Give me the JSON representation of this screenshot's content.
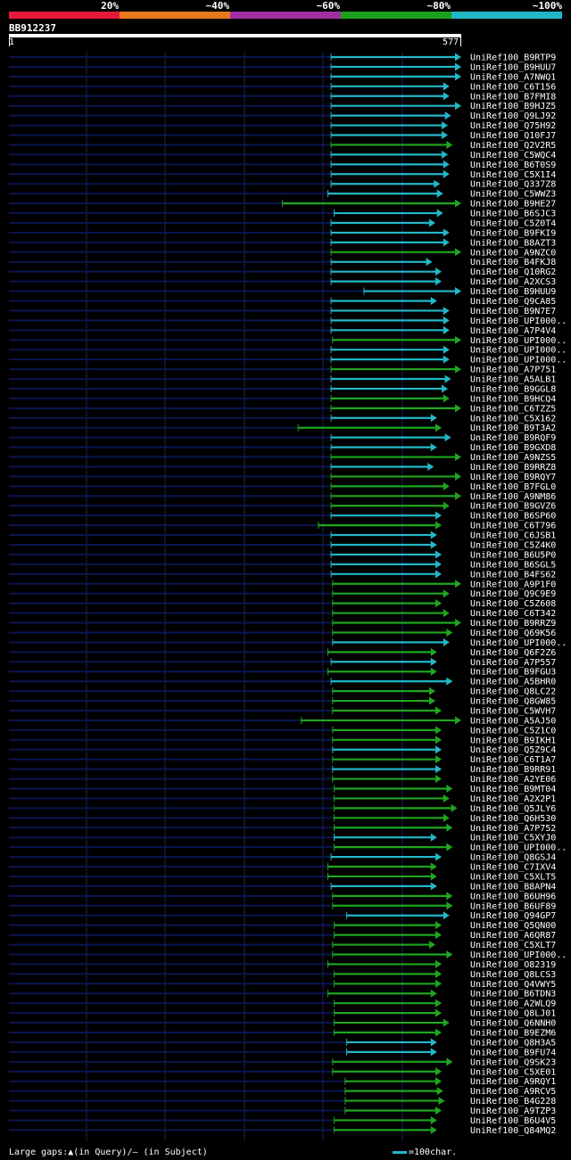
{
  "legend": {
    "labels": [
      "20%",
      "~40%",
      "~60%",
      "~80%",
      "~100%"
    ],
    "colors": [
      "#e8183c",
      "#e8781c",
      "#a030a0",
      "#1ca01c",
      "#20b8c4"
    ]
  },
  "query": {
    "name": "BB912237",
    "start": "1",
    "end": "577"
  },
  "colors": {
    "cyan": "#22b8c8",
    "green": "#1fa61f",
    "track": "#0a1650"
  },
  "hits": [
    {
      "label": "UniRef100_B9RTP9",
      "start": 412,
      "end": 577,
      "color": "cyan"
    },
    {
      "label": "UniRef100_B9HUU7",
      "start": 412,
      "end": 577,
      "color": "cyan"
    },
    {
      "label": "UniRef100_A7NWQ1",
      "start": 412,
      "end": 577,
      "color": "cyan"
    },
    {
      "label": "UniRef100_C6T156",
      "start": 412,
      "end": 562,
      "color": "cyan"
    },
    {
      "label": "UniRef100_B7FMI8",
      "start": 412,
      "end": 562,
      "color": "cyan"
    },
    {
      "label": "UniRef100_B9HJZ5",
      "start": 412,
      "end": 577,
      "color": "cyan"
    },
    {
      "label": "UniRef100_Q9LJ92",
      "start": 412,
      "end": 564,
      "color": "cyan"
    },
    {
      "label": "UniRef100_Q75H92",
      "start": 412,
      "end": 560,
      "color": "cyan"
    },
    {
      "label": "UniRef100_Q10FJ7",
      "start": 412,
      "end": 560,
      "color": "cyan"
    },
    {
      "label": "UniRef100_Q2V2R5",
      "start": 412,
      "end": 566,
      "color": "green"
    },
    {
      "label": "UniRef100_C5WQC4",
      "start": 412,
      "end": 560,
      "color": "cyan"
    },
    {
      "label": "UniRef100_B6T0S9",
      "start": 412,
      "end": 562,
      "color": "cyan"
    },
    {
      "label": "UniRef100_C5X1I4",
      "start": 412,
      "end": 562,
      "color": "cyan"
    },
    {
      "label": "UniRef100_Q337Z8",
      "start": 412,
      "end": 550,
      "color": "cyan"
    },
    {
      "label": "UniRef100_C5WWZ3",
      "start": 408,
      "end": 554,
      "color": "cyan"
    },
    {
      "label": "UniRef100_B9HE27",
      "start": 350,
      "end": 577,
      "color": "green"
    },
    {
      "label": "UniRef100_B6SJC3",
      "start": 416,
      "end": 554,
      "color": "cyan"
    },
    {
      "label": "UniRef100_C5Z0T4",
      "start": 412,
      "end": 544,
      "color": "cyan"
    },
    {
      "label": "UniRef100_B9FKI9",
      "start": 412,
      "end": 562,
      "color": "cyan"
    },
    {
      "label": "UniRef100_B8AZT3",
      "start": 412,
      "end": 562,
      "color": "cyan"
    },
    {
      "label": "UniRef100_A9NZC0",
      "start": 412,
      "end": 577,
      "color": "green"
    },
    {
      "label": "UniRef100_B4FKJ8",
      "start": 412,
      "end": 540,
      "color": "cyan"
    },
    {
      "label": "UniRef100_Q10RG2",
      "start": 412,
      "end": 552,
      "color": "cyan"
    },
    {
      "label": "UniRef100_A2XCS3",
      "start": 412,
      "end": 552,
      "color": "cyan"
    },
    {
      "label": "UniRef100_B9HUU9",
      "start": 454,
      "end": 577,
      "color": "cyan"
    },
    {
      "label": "UniRef100_Q9CA85",
      "start": 412,
      "end": 546,
      "color": "cyan"
    },
    {
      "label": "UniRef100_B9N7E7",
      "start": 412,
      "end": 562,
      "color": "cyan"
    },
    {
      "label": "UniRef100_UPI000..",
      "start": 412,
      "end": 562,
      "color": "cyan"
    },
    {
      "label": "UniRef100_A7P4V4",
      "start": 412,
      "end": 562,
      "color": "cyan"
    },
    {
      "label": "UniRef100_UPI000..",
      "start": 414,
      "end": 577,
      "color": "green"
    },
    {
      "label": "UniRef100_UPI000..",
      "start": 412,
      "end": 562,
      "color": "cyan"
    },
    {
      "label": "UniRef100_UPI000..",
      "start": 412,
      "end": 562,
      "color": "cyan"
    },
    {
      "label": "UniRef100_A7P751",
      "start": 412,
      "end": 577,
      "color": "green"
    },
    {
      "label": "UniRef100_A5ALB1",
      "start": 412,
      "end": 564,
      "color": "cyan"
    },
    {
      "label": "UniRef100_B9GGL8",
      "start": 412,
      "end": 560,
      "color": "cyan"
    },
    {
      "label": "UniRef100_B9HCQ4",
      "start": 412,
      "end": 562,
      "color": "green"
    },
    {
      "label": "UniRef100_C6TZZ5",
      "start": 412,
      "end": 577,
      "color": "green"
    },
    {
      "label": "UniRef100_C5X162",
      "start": 412,
      "end": 546,
      "color": "cyan"
    },
    {
      "label": "UniRef100_B9T3A2",
      "start": 370,
      "end": 552,
      "color": "green"
    },
    {
      "label": "UniRef100_B9RQF9",
      "start": 412,
      "end": 564,
      "color": "cyan"
    },
    {
      "label": "UniRef100_B9GXD8",
      "start": 412,
      "end": 546,
      "color": "cyan"
    },
    {
      "label": "UniRef100_A9NZS5",
      "start": 412,
      "end": 577,
      "color": "green"
    },
    {
      "label": "UniRef100_B9RRZ8",
      "start": 412,
      "end": 542,
      "color": "cyan"
    },
    {
      "label": "UniRef100_B9RQY7",
      "start": 412,
      "end": 577,
      "color": "green"
    },
    {
      "label": "UniRef100_B7FGL0",
      "start": 412,
      "end": 562,
      "color": "green"
    },
    {
      "label": "UniRef100_A9NM86",
      "start": 412,
      "end": 577,
      "color": "green"
    },
    {
      "label": "UniRef100_B9GVZ6",
      "start": 412,
      "end": 562,
      "color": "green"
    },
    {
      "label": "UniRef100_B6SP60",
      "start": 412,
      "end": 552,
      "color": "cyan"
    },
    {
      "label": "UniRef100_C6T796",
      "start": 396,
      "end": 552,
      "color": "green"
    },
    {
      "label": "UniRef100_C6JSB1",
      "start": 412,
      "end": 546,
      "color": "cyan"
    },
    {
      "label": "UniRef100_C5Z4K0",
      "start": 412,
      "end": 546,
      "color": "cyan"
    },
    {
      "label": "UniRef100_B6U5P0",
      "start": 412,
      "end": 552,
      "color": "cyan"
    },
    {
      "label": "UniRef100_B6SGL5",
      "start": 412,
      "end": 552,
      "color": "cyan"
    },
    {
      "label": "UniRef100_B4FS62",
      "start": 412,
      "end": 552,
      "color": "cyan"
    },
    {
      "label": "UniRef100_A9P1F0",
      "start": 414,
      "end": 577,
      "color": "green"
    },
    {
      "label": "UniRef100_Q9C9E9",
      "start": 414,
      "end": 562,
      "color": "green"
    },
    {
      "label": "UniRef100_C5Z608",
      "start": 414,
      "end": 552,
      "color": "green"
    },
    {
      "label": "UniRef100_C6T342",
      "start": 414,
      "end": 562,
      "color": "green"
    },
    {
      "label": "UniRef100_B9RRZ9",
      "start": 414,
      "end": 577,
      "color": "green"
    },
    {
      "label": "UniRef100_Q69K56",
      "start": 414,
      "end": 566,
      "color": "green"
    },
    {
      "label": "UniRef100_UPI000..",
      "start": 414,
      "end": 562,
      "color": "cyan"
    },
    {
      "label": "UniRef100_Q6F2Z6",
      "start": 408,
      "end": 546,
      "color": "green"
    },
    {
      "label": "UniRef100_A7P557",
      "start": 412,
      "end": 546,
      "color": "cyan"
    },
    {
      "label": "UniRef100_B9FGU3",
      "start": 408,
      "end": 546,
      "color": "green"
    },
    {
      "label": "UniRef100_A5BHR0",
      "start": 412,
      "end": 566,
      "color": "cyan"
    },
    {
      "label": "UniRef100_Q8LC22",
      "start": 414,
      "end": 544,
      "color": "green"
    },
    {
      "label": "UniRef100_Q8GW85",
      "start": 414,
      "end": 544,
      "color": "green"
    },
    {
      "label": "UniRef100_C5WVH7",
      "start": 414,
      "end": 552,
      "color": "green"
    },
    {
      "label": "UniRef100_A5AJ50",
      "start": 374,
      "end": 577,
      "color": "green"
    },
    {
      "label": "UniRef100_C5Z1C0",
      "start": 414,
      "end": 552,
      "color": "green"
    },
    {
      "label": "UniRef100_B9IKH1",
      "start": 414,
      "end": 552,
      "color": "green"
    },
    {
      "label": "UniRef100_Q5Z9C4",
      "start": 414,
      "end": 552,
      "color": "cyan"
    },
    {
      "label": "UniRef100_C6T1A7",
      "start": 414,
      "end": 552,
      "color": "green"
    },
    {
      "label": "UniRef100_B9RR91",
      "start": 414,
      "end": 552,
      "color": "cyan"
    },
    {
      "label": "UniRef100_A2YE06",
      "start": 414,
      "end": 552,
      "color": "green"
    },
    {
      "label": "UniRef100_B9MT04",
      "start": 416,
      "end": 566,
      "color": "green"
    },
    {
      "label": "UniRef100_A2X2P1",
      "start": 416,
      "end": 562,
      "color": "green"
    },
    {
      "label": "UniRef100_Q5JLY6",
      "start": 416,
      "end": 572,
      "color": "green"
    },
    {
      "label": "UniRef100_Q6H530",
      "start": 416,
      "end": 562,
      "color": "green"
    },
    {
      "label": "UniRef100_A7P752",
      "start": 416,
      "end": 566,
      "color": "green"
    },
    {
      "label": "UniRef100_C5XYJ0",
      "start": 416,
      "end": 546,
      "color": "cyan"
    },
    {
      "label": "UniRef100_UPI000..",
      "start": 416,
      "end": 566,
      "color": "green"
    },
    {
      "label": "UniRef100_Q8GSJ4",
      "start": 412,
      "end": 552,
      "color": "cyan"
    },
    {
      "label": "UniRef100_C7IXV4",
      "start": 408,
      "end": 546,
      "color": "green"
    },
    {
      "label": "UniRef100_C5XLT5",
      "start": 408,
      "end": 546,
      "color": "green"
    },
    {
      "label": "UniRef100_B8APN4",
      "start": 412,
      "end": 546,
      "color": "cyan"
    },
    {
      "label": "UniRef100_B6UH96",
      "start": 414,
      "end": 566,
      "color": "green"
    },
    {
      "label": "UniRef100_B6UF89",
      "start": 414,
      "end": 566,
      "color": "green"
    },
    {
      "label": "UniRef100_Q94GP7",
      "start": 432,
      "end": 562,
      "color": "cyan"
    },
    {
      "label": "UniRef100_Q5QN00",
      "start": 416,
      "end": 552,
      "color": "green"
    },
    {
      "label": "UniRef100_A6QR87",
      "start": 416,
      "end": 552,
      "color": "green"
    },
    {
      "label": "UniRef100_C5XLT7",
      "start": 414,
      "end": 544,
      "color": "green"
    },
    {
      "label": "UniRef100_UPI000..",
      "start": 414,
      "end": 566,
      "color": "green"
    },
    {
      "label": "UniRef100_O82319",
      "start": 408,
      "end": 552,
      "color": "green"
    },
    {
      "label": "UniRef100_Q8LCS3",
      "start": 416,
      "end": 552,
      "color": "green"
    },
    {
      "label": "UniRef100_Q4VWY5",
      "start": 416,
      "end": 552,
      "color": "green"
    },
    {
      "label": "UniRef100_B6TDN3",
      "start": 408,
      "end": 546,
      "color": "green"
    },
    {
      "label": "UniRef100_A2WLQ9",
      "start": 416,
      "end": 552,
      "color": "green"
    },
    {
      "label": "UniRef100_Q8LJ01",
      "start": 416,
      "end": 552,
      "color": "green"
    },
    {
      "label": "UniRef100_Q6NNH0",
      "start": 416,
      "end": 562,
      "color": "green"
    },
    {
      "label": "UniRef100_B9EZM6",
      "start": 416,
      "end": 552,
      "color": "green"
    },
    {
      "label": "UniRef100_Q8H3A5",
      "start": 432,
      "end": 546,
      "color": "cyan"
    },
    {
      "label": "UniRef100_B9FU74",
      "start": 432,
      "end": 546,
      "color": "cyan"
    },
    {
      "label": "UniRef100_Q9SK23",
      "start": 414,
      "end": 566,
      "color": "green"
    },
    {
      "label": "UniRef100_C5XE01",
      "start": 414,
      "end": 552,
      "color": "green"
    },
    {
      "label": "UniRef100_A9RQY1",
      "start": 430,
      "end": 552,
      "color": "green"
    },
    {
      "label": "UniRef100_A9RCV5",
      "start": 430,
      "end": 554,
      "color": "green"
    },
    {
      "label": "UniRef100_B4G228",
      "start": 430,
      "end": 556,
      "color": "green"
    },
    {
      "label": "UniRef100_A9TZP3",
      "start": 430,
      "end": 552,
      "color": "green"
    },
    {
      "label": "UniRef100_B6U4V5",
      "start": 416,
      "end": 546,
      "color": "green"
    },
    {
      "label": "UniRef100_Q84MQ2",
      "start": 416,
      "end": 546,
      "color": "green"
    }
  ],
  "footer": {
    "gaps_text": "Large gaps:▲(in Query)/– (in Subject)",
    "scale_text": "=100char."
  }
}
